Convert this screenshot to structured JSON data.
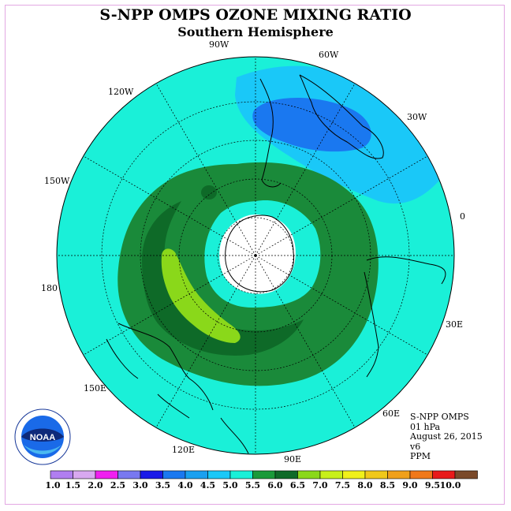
{
  "title": "S-NPP OMPS OZONE MIXING RATIO",
  "subtitle": "Southern Hemisphere",
  "longitude_labels": [
    {
      "text": "90W"
    },
    {
      "text": "60W"
    },
    {
      "text": "30W"
    },
    {
      "text": "0"
    },
    {
      "text": "30E"
    },
    {
      "text": "60E"
    },
    {
      "text": "90E"
    },
    {
      "text": "120E"
    },
    {
      "text": "150E"
    },
    {
      "text": "180"
    },
    {
      "text": "150W"
    },
    {
      "text": "120W"
    }
  ],
  "info": {
    "instrument": "S-NPP OMPS",
    "level": "01 hPa",
    "date": "August 26, 2015",
    "version": "v6",
    "units": "PPM"
  },
  "logo": {
    "text": "NOAA",
    "icon": "noaa-logo-icon"
  },
  "colorbar": {
    "labels": [
      "1.0",
      "1.5",
      "2.0",
      "2.5",
      "3.0",
      "3.5",
      "4.0",
      "4.5",
      "5.0",
      "5.5",
      "6.0",
      "6.5",
      "7.0",
      "7.5",
      "8.0",
      "8.5",
      "9.0",
      "9.5",
      "10.0"
    ],
    "colors": [
      "#b07ef0",
      "#d8a8f0",
      "#f020f0",
      "#7878f0",
      "#1a1ae8",
      "#1a78f0",
      "#1aa0f0",
      "#1ac8f8",
      "#1af0d8",
      "#1a9a3a",
      "#0e6a28",
      "#8ad81a",
      "#c8f01a",
      "#f0f01a",
      "#f0c81a",
      "#f0a01a",
      "#f0781a",
      "#e81a1a",
      "#7a4a2a"
    ]
  },
  "map_colors": {
    "ocean_level": "#1af0d8",
    "dark_green": "#1a8a3a",
    "darker_green": "#0e6a28",
    "light_green": "#8ad81a",
    "light_blue": "#1ac8f8",
    "medium_blue": "#1a78f0",
    "polar_night": "#ffffff"
  }
}
